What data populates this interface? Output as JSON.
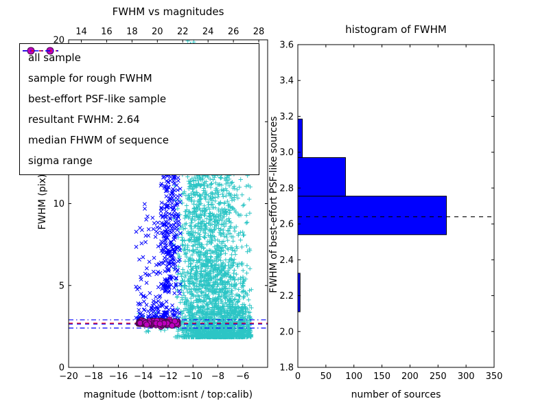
{
  "figure": {
    "background": "#ffffff"
  },
  "chart_data": [
    {
      "id": "fwhm_scatter",
      "type": "scatter",
      "title": "FWHM vs magnitudes",
      "xlabel": "magnitude (bottom:isnt / top:calib)",
      "ylabel": "FWHM (pix)",
      "xlim": [
        -20,
        -4
      ],
      "ylim": [
        0,
        20
      ],
      "x_ticks": [
        -20,
        -18,
        -16,
        -14,
        -12,
        -10,
        -8,
        -6
      ],
      "y_ticks": [
        0,
        5,
        10,
        15,
        20
      ],
      "top_axis": {
        "ticks": [
          14,
          16,
          18,
          20,
          22,
          24,
          26,
          28
        ],
        "xlim": [
          13,
          28.7
        ]
      },
      "grid": false,
      "legend_position": "upper left",
      "legend": [
        {
          "label": "all sample",
          "type": "marker",
          "marker": "plus",
          "color": "#2cc5c5"
        },
        {
          "label": "sample for rough FWHM",
          "type": "marker",
          "marker": "x",
          "color": "#0000ff"
        },
        {
          "label": "best-effort PSF-like sample",
          "type": "marker",
          "marker": "circle",
          "color": "#bf00bf",
          "edge": "#4a0a4a"
        },
        {
          "label": "resultant FWHM: 2.64",
          "type": "line",
          "style": "dashed",
          "color": "#0000ff"
        },
        {
          "label": "median FHWM of sequence",
          "type": "line",
          "style": "dashed",
          "color": "#ff0000"
        },
        {
          "label": "sigma range",
          "type": "line",
          "style": "dashdot",
          "color": "#0000ff"
        }
      ],
      "hlines": [
        {
          "name": "sigma-upper",
          "y": 2.9,
          "style": "dashdot",
          "color": "#0000ff"
        },
        {
          "name": "sigma-lower",
          "y": 2.4,
          "style": "dashdot",
          "color": "#0000ff"
        },
        {
          "name": "median-fwhm",
          "y": 2.7,
          "style": "dashed",
          "color": "#ff0000"
        },
        {
          "name": "resultant-fwhm",
          "y": 2.64,
          "style": "dashed",
          "color": "#0000ff"
        }
      ],
      "series": [
        {
          "name": "all sample",
          "marker": "plus",
          "color": "#2cc5c5",
          "clusters": [
            {
              "count": 2200,
              "x": {
                "dist": "normal",
                "mean": -8.2,
                "sd": 1.35,
                "min": -11.5,
                "max": -5.3
              },
              "y": {
                "dist": "power",
                "min": 1.85,
                "max": 12.3,
                "p": 2.6
              }
            },
            {
              "count": 450,
              "x": {
                "dist": "normal",
                "mean": -10.1,
                "sd": 0.65,
                "min": -11.6,
                "max": -8.7
              },
              "y": {
                "dist": "power",
                "min": 2.2,
                "max": 19.2,
                "p": 1.6
              }
            },
            {
              "count": 55,
              "x": {
                "dist": "normal",
                "mean": -9.9,
                "sd": 0.9,
                "min": -11.6,
                "max": -7.6
              },
              "y": {
                "dist": "uniform",
                "min": 12.5,
                "max": 20
              }
            },
            {
              "count": 260,
              "x": {
                "dist": "uniform",
                "min": -7.6,
                "max": -5.3
              },
              "y": {
                "dist": "power",
                "min": 1.85,
                "max": 3.7,
                "p": 2
              }
            },
            {
              "count": 15,
              "x": {
                "dist": "uniform",
                "min": -14.5,
                "max": -12
              },
              "y": {
                "dist": "uniform",
                "min": 2.1,
                "max": 3.4
              }
            }
          ]
        },
        {
          "name": "sample for rough FWHM",
          "marker": "x",
          "color": "#0000ff",
          "clusters": [
            {
              "count": 260,
              "x": {
                "dist": "normal",
                "mean": -11.8,
                "sd": 0.45,
                "min": -12.6,
                "max": -11.0
              },
              "y": {
                "dist": "uniform",
                "min": 4.5,
                "max": 12.3
              }
            },
            {
              "count": 130,
              "x": {
                "dist": "uniform",
                "min": -14.6,
                "max": -11.9
              },
              "y": {
                "dist": "power",
                "min": 3,
                "max": 10,
                "p": 2.2
              }
            },
            {
              "count": 60,
              "x": {
                "dist": "uniform",
                "min": -14.4,
                "max": -11.1
              },
              "y": {
                "dist": "normal",
                "mean": 3.2,
                "sd": 0.35,
                "min": 2.6,
                "max": 4.2
              }
            }
          ]
        },
        {
          "name": "best-effort PSF-like sample",
          "marker": "circle",
          "color": "#bf00bf",
          "edge": "#4a0a4a",
          "clusters": [
            {
              "count": 160,
              "x": {
                "dist": "uniform",
                "min": -14.4,
                "max": -11.2
              },
              "y": {
                "dist": "normal",
                "mean": 2.72,
                "sd": 0.07,
                "min": 2.45,
                "max": 2.95
              }
            }
          ]
        }
      ]
    },
    {
      "id": "fwhm_hist",
      "type": "bar",
      "orientation": "horizontal",
      "title": "histogram of FWHM",
      "xlabel": "number of sources",
      "ylabel": "FWHM of best-effort PSF-like sources",
      "xlim": [
        0,
        350
      ],
      "ylim": [
        1.8,
        3.6
      ],
      "x_ticks": [
        0,
        50,
        100,
        150,
        200,
        250,
        300,
        350
      ],
      "y_ticks": [
        1.8,
        2.0,
        2.2,
        2.4,
        2.6,
        2.8,
        3.0,
        3.2,
        3.4,
        3.6
      ],
      "bar_color": "#0000ff",
      "bar_edge": "#000000",
      "bin_edges": [
        2.11,
        2.325,
        2.54,
        2.755,
        2.97,
        3.185
      ],
      "counts": [
        4,
        0,
        265,
        85,
        8
      ],
      "hline": {
        "name": "resultant-fwhm",
        "y": 2.64,
        "style": "dashed",
        "color": "#000000"
      }
    }
  ]
}
